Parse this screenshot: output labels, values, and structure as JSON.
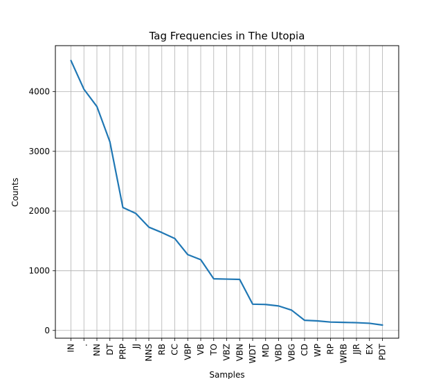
{
  "chart_data": {
    "type": "line",
    "title": "Tag Frequencies in The Utopia",
    "xlabel": "Samples",
    "ylabel": "Counts",
    "categories": [
      "IN",
      ".",
      "NN",
      "DT",
      "PRP",
      "JJ",
      "NNS",
      "RB",
      "CC",
      "VBP",
      "VB",
      "TO",
      "VBZ",
      "VBN",
      "WDT",
      "MD",
      "VBD",
      "VBG",
      "CD",
      "WP",
      "RP",
      "WRB",
      "JJR",
      "EX",
      "PDT"
    ],
    "values": [
      4520,
      4040,
      3750,
      3160,
      2060,
      1960,
      1730,
      1640,
      1540,
      1270,
      1185,
      865,
      860,
      855,
      440,
      435,
      410,
      340,
      170,
      160,
      140,
      135,
      130,
      120,
      90
    ],
    "ylim": [
      -130,
      4770
    ],
    "yticks": [
      0,
      1000,
      2000,
      3000,
      4000
    ],
    "grid": true,
    "line_color": "#1f77b4"
  }
}
